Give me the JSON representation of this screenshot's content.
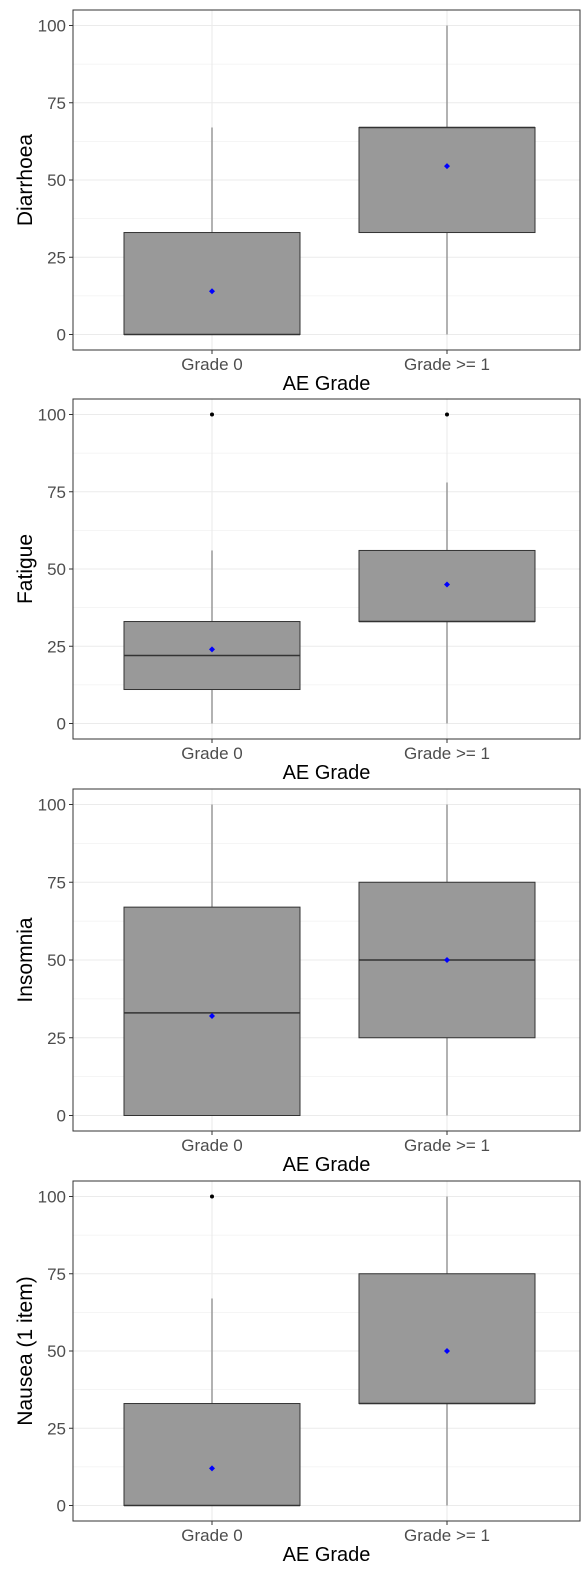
{
  "chart_data": [
    {
      "type": "box",
      "xlabel": "AE Grade",
      "ylabel": "Diarrhoea",
      "categories": [
        "Grade 0",
        "Grade >= 1"
      ],
      "ylim": [
        0,
        100
      ],
      "yticks": [
        0,
        25,
        50,
        75,
        100
      ],
      "grid": true,
      "boxes": [
        {
          "whisker_low": 0,
          "q1": 0,
          "median": 0,
          "q3": 33,
          "whisker_high": 67,
          "mean": 14,
          "outliers": []
        },
        {
          "whisker_low": 0,
          "q1": 33,
          "median": 67,
          "q3": 67,
          "whisker_high": 100,
          "mean": 54.5,
          "outliers": []
        }
      ]
    },
    {
      "type": "box",
      "xlabel": "AE Grade",
      "ylabel": "Fatigue",
      "categories": [
        "Grade 0",
        "Grade >= 1"
      ],
      "ylim": [
        0,
        100
      ],
      "yticks": [
        0,
        25,
        50,
        75,
        100
      ],
      "grid": true,
      "boxes": [
        {
          "whisker_low": 0,
          "q1": 11,
          "median": 22,
          "q3": 33,
          "whisker_high": 56,
          "mean": 24,
          "outliers": [
            100
          ]
        },
        {
          "whisker_low": 0,
          "q1": 33,
          "median": 33,
          "q3": 56,
          "whisker_high": 78,
          "mean": 45,
          "outliers": [
            100
          ]
        }
      ]
    },
    {
      "type": "box",
      "xlabel": "AE Grade",
      "ylabel": "Insomnia",
      "categories": [
        "Grade 0",
        "Grade >= 1"
      ],
      "ylim": [
        0,
        100
      ],
      "yticks": [
        0,
        25,
        50,
        75,
        100
      ],
      "grid": true,
      "boxes": [
        {
          "whisker_low": 0,
          "q1": 0,
          "median": 33,
          "q3": 67,
          "whisker_high": 100,
          "mean": 32,
          "outliers": []
        },
        {
          "whisker_low": 0,
          "q1": 25,
          "median": 50,
          "q3": 75,
          "whisker_high": 100,
          "mean": 50,
          "outliers": []
        }
      ]
    },
    {
      "type": "box",
      "xlabel": "AE Grade",
      "ylabel": "Nausea (1 item)",
      "categories": [
        "Grade 0",
        "Grade >= 1"
      ],
      "ylim": [
        0,
        100
      ],
      "yticks": [
        0,
        25,
        50,
        75,
        100
      ],
      "grid": true,
      "boxes": [
        {
          "whisker_low": 0,
          "q1": 0,
          "median": 0,
          "q3": 33,
          "whisker_high": 67,
          "mean": 12,
          "outliers": [
            100
          ]
        },
        {
          "whisker_low": 0,
          "q1": 33,
          "median": 33,
          "q3": 75,
          "whisker_high": 100,
          "mean": 50,
          "outliers": []
        }
      ]
    }
  ],
  "colors": {
    "box_fill": "#999999",
    "box_stroke": "#333333",
    "whisker": "#999999",
    "mean_marker": "#0000ff",
    "outlier": "#000000",
    "grid": "#ebebeb",
    "panel_border": "#333333",
    "tick_text": "#4d4d4d",
    "axis_title": "#000000"
  }
}
